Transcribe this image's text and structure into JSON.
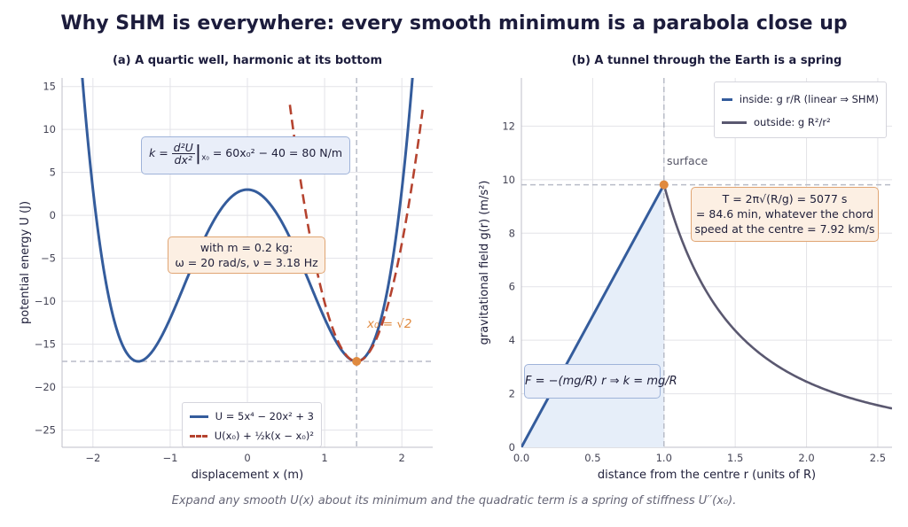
{
  "suptitle": "Why SHM is everywhere: every smooth minimum is a parabola close up",
  "caption": "Expand any smooth U(x) about its minimum and the quadratic term is a spring of stiffness U′′(x₀).",
  "colors": {
    "blue": "#345c9c",
    "red": "#b5432f",
    "dark": "#5a5870",
    "orange": "#e08a3f",
    "fill": "#e6eef9",
    "grid": "#e3e3e8",
    "dashed": "#b8bcc8"
  },
  "panel_a": {
    "title": "(a)  A quartic well, harmonic at its bottom",
    "annotation_k": {
      "prefix": "k =",
      "num": "d²U",
      "den": "dx²",
      "sub": "x₀",
      "rest": "= 60x₀² − 40 = 80 N/m"
    },
    "annotation_params": {
      "line1": "with m = 0.2 kg:",
      "line2": "ω = 20 rad/s,  ν = 3.18 Hz"
    },
    "point_label": "x₀ = √2",
    "legend": [
      {
        "label": "U = 5x⁴ − 20x² + 3",
        "style": "solid"
      },
      {
        "label": "U(x₀) + ½k(x − x₀)²",
        "style": "dashed"
      }
    ]
  },
  "panel_b": {
    "title": "(b)  A tunnel through the Earth is a spring",
    "surface_label": "surface",
    "annotation_period": {
      "line1": "T = 2π√(R/g) = 5077 s",
      "line2": "= 84.6 min, whatever the chord",
      "line3": "speed at the centre  = 7.92 km/s"
    },
    "annotation_force": "F = −(mg/R) r  ⇒  k = mg/R",
    "legend": [
      {
        "label": "inside: g r/R  (linear ⇒ SHM)",
        "style": "solid"
      },
      {
        "label": "outside: g R²/r²",
        "style": "solid"
      }
    ]
  },
  "chart_data": [
    {
      "type": "line",
      "title": "(a)  A quartic well, harmonic at its bottom",
      "xlabel": "displacement x (m)",
      "ylabel": "potential energy U (J)",
      "xlim": [
        -2.4,
        2.4
      ],
      "ylim": [
        -27,
        16
      ],
      "xticks": [
        -2,
        -1,
        0,
        1,
        2
      ],
      "yticks": [
        -25,
        -20,
        -15,
        -10,
        -5,
        0,
        5,
        10,
        15
      ],
      "grid": true,
      "legend_position": "bottom-center",
      "series": [
        {
          "name": "U = 5x⁴ − 20x² + 3",
          "formula": "5x^4 - 20x^2 + 3",
          "x_range": [
            -2.4,
            2.4
          ],
          "style": "solid"
        },
        {
          "name": "U(x₀) + ½k(x − x₀)²",
          "formula": "-17 + 40(x - 1.41421)^2",
          "x_range": [
            0.55,
            2.27
          ],
          "style": "dashed"
        }
      ],
      "reference_lines": {
        "vertical_x": 1.41421,
        "horizontal_y": -17
      },
      "marked_point": {
        "x": 1.41421,
        "y": -17
      }
    },
    {
      "type": "line",
      "title": "(b)  A tunnel through the Earth is a spring",
      "xlabel": "distance from the centre r (units of R)",
      "ylabel": "gravitational field g(r) (m/s²)",
      "xlim": [
        0,
        2.6
      ],
      "ylim": [
        0,
        13.8
      ],
      "xticks": [
        0.0,
        0.5,
        1.0,
        1.5,
        2.0,
        2.5
      ],
      "yticks": [
        0,
        2,
        4,
        6,
        8,
        10,
        12
      ],
      "grid": true,
      "legend_position": "top-right",
      "series": [
        {
          "name": "inside: g r/R  (linear ⇒ SHM)",
          "x": [
            0,
            1.0
          ],
          "y": [
            0,
            9.81
          ],
          "style": "solid"
        },
        {
          "name": "outside: g R²/r²",
          "formula": "9.81 / r^2",
          "x_range": [
            1.0,
            2.6
          ],
          "style": "solid"
        }
      ],
      "reference_lines": {
        "vertical_x": 1.0,
        "horizontal_y": 9.81
      },
      "marked_point": {
        "x": 1.0,
        "y": 9.81
      }
    }
  ]
}
